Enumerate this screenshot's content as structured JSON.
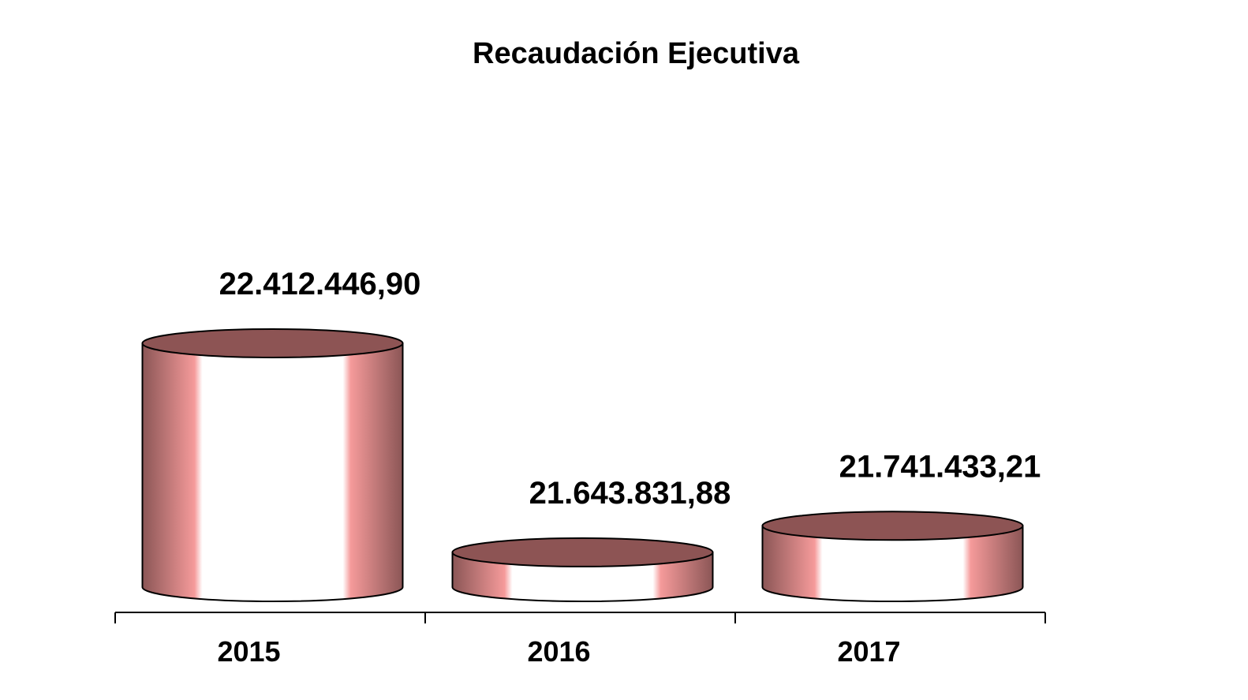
{
  "chart_data": {
    "type": "bar",
    "style": "3d-cylinder",
    "title": "Recaudación Ejecutiva",
    "xlabel": "",
    "ylabel": "",
    "categories": [
      "2015",
      "2016",
      "2017"
    ],
    "values": [
      22412446.9,
      21643831.88,
      21741433.21
    ],
    "data_labels": [
      "22.412.446,90",
      "21.643.831,88",
      "21.741.433,21"
    ],
    "grid": false,
    "legend": "none",
    "colors": {
      "cylinder_edge": "#8b5656",
      "cylinder_bright": "#f59a9a",
      "cylinder_highlight": "#ffffff",
      "cylinder_top": "#8d5454",
      "axis": "#000000"
    }
  }
}
